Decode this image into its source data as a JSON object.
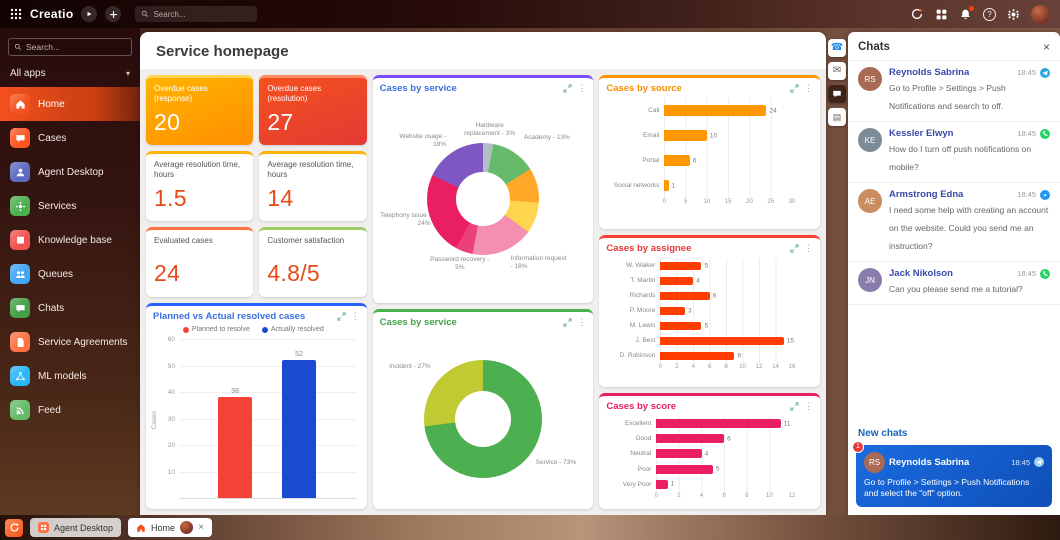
{
  "topbar": {
    "logo": "Creatio",
    "search_placeholder": "Search...",
    "right_icons": [
      "refresh-swirl",
      "apps-grid",
      "notifications-bell",
      "help",
      "settings-gear",
      "user-avatar"
    ]
  },
  "sidebar": {
    "search_placeholder": "Search...",
    "workspace_selector": "All apps",
    "items": [
      {
        "label": "Home",
        "color": "#f4511e",
        "active": true
      },
      {
        "label": "Cases",
        "color": "#ff5722"
      },
      {
        "label": "Agent Desktop",
        "color": "#5c6bc0"
      },
      {
        "label": "Services",
        "color": "#4caf50"
      },
      {
        "label": "Knowledge base",
        "color": "#ef5350"
      },
      {
        "label": "Queues",
        "color": "#42a5f5"
      },
      {
        "label": "Chats",
        "color": "#43a047"
      },
      {
        "label": "Service Agreements",
        "color": "#ff7043"
      },
      {
        "label": "ML models",
        "color": "#29b6f6"
      },
      {
        "label": "Feed",
        "color": "#66bb6a"
      }
    ]
  },
  "main": {
    "title": "Service homepage",
    "kpis": [
      {
        "label": "Overdue cases (response)",
        "value": "20",
        "accent": "#ffd54f",
        "grad": {
          "from": "#ffb300",
          "to": "#ff8f00"
        }
      },
      {
        "label": "Overdue cases (resolution)",
        "value": "27",
        "accent": "#ff8a65",
        "grad": {
          "from": "#f4511e",
          "to": "#e53935"
        }
      },
      {
        "label": "Average resolution time, hours",
        "value": "1.5",
        "accent": "#ffb300"
      },
      {
        "label": "Average resolution time, hours",
        "value": "14",
        "accent": "#ffb300"
      },
      {
        "label": "Evaluated cases",
        "value": "24",
        "accent": "#ff7043"
      },
      {
        "label": "Customer satisfaction",
        "value": "4.8/5",
        "accent": "#9ccc65"
      }
    ]
  },
  "charts": {
    "cases_by_service": {
      "type": "pie",
      "title": "Cases by service",
      "title_color": "#3b6fe0",
      "accent": "#7c4dff",
      "segments": [
        {
          "label": "Hardware replacement",
          "pct": 3,
          "color": "#b0bec5"
        },
        {
          "label": "Academy",
          "pct": 13,
          "color": "#66bb6a"
        },
        {
          "label": "",
          "pct": 10,
          "color": "#ffa726"
        },
        {
          "label": "",
          "pct": 9,
          "color": "#ffd54f"
        },
        {
          "label": "Information request",
          "pct": 18,
          "color": "#f48fb1"
        },
        {
          "label": "Password recovery",
          "pct": 5,
          "color": "#ec407a"
        },
        {
          "label": "Telephony issue",
          "pct": 24,
          "color": "#e91e63"
        },
        {
          "label": "Website usage",
          "pct": 18,
          "color": "#7e57c2"
        }
      ]
    },
    "cases_by_source": {
      "type": "bar-horizontal",
      "title": "Cases by source",
      "title_color": "#fb8c00",
      "accent": "#ff9800",
      "color": "#ff9800",
      "categories": [
        "Call",
        "Email",
        "Portal",
        "Social networks"
      ],
      "values": [
        24,
        10,
        6,
        1
      ],
      "xmax": 30,
      "xticks": [
        0,
        5,
        10,
        15,
        20,
        25,
        30
      ]
    },
    "cases_by_assignee": {
      "type": "bar-horizontal",
      "title": "Cases by assignee",
      "title_color": "#e53935",
      "accent": "#f44336",
      "color": "#ff3d00",
      "categories": [
        "W. Walker",
        "T. Martin",
        "Richards",
        "P. Moore",
        "M. Lewis",
        "J. Best",
        "D. Robinson"
      ],
      "values": [
        5,
        4,
        6,
        3,
        5,
        15,
        9
      ],
      "xmax": 16,
      "xticks": [
        0,
        2,
        4,
        6,
        8,
        10,
        12,
        14,
        16
      ]
    },
    "planned_vs_actual": {
      "type": "bar",
      "title": "Planned vs Actual resolved cases",
      "title_color": "#3b6fe0",
      "accent": "#2962ff",
      "ylabel": "Cases",
      "ylim": [
        0,
        60
      ],
      "yticks": [
        10,
        20,
        30,
        40,
        50,
        60
      ],
      "series": [
        {
          "name": "Planned to resolve",
          "color": "#f44336",
          "value": 38
        },
        {
          "name": "Actually resolved",
          "color": "#1a49d2",
          "value": 52
        }
      ]
    },
    "cases_by_service_type": {
      "type": "pie",
      "title": "Cases by service",
      "title_color": "#43a047",
      "accent": "#4caf50",
      "segments": [
        {
          "label": "Service",
          "pct": 73,
          "color": "#4caf50"
        },
        {
          "label": "Incident",
          "pct": 27,
          "color": "#c0ca33"
        }
      ]
    },
    "cases_by_score": {
      "type": "bar-horizontal",
      "title": "Cases by score",
      "title_color": "#e91e63",
      "accent": "#e91e63",
      "color": "#e91e63",
      "categories": [
        "Excellent",
        "Good",
        "Neutral",
        "Poor",
        "Very Poor"
      ],
      "values": [
        11,
        6,
        4,
        5,
        1
      ],
      "xmax": 12,
      "xticks": [
        0,
        2,
        4,
        6,
        8,
        10,
        12
      ]
    }
  },
  "comm_panel": {
    "icons": [
      "calls",
      "emails",
      "chats",
      "feed"
    ]
  },
  "chat_panel": {
    "title": "Chats",
    "items": [
      {
        "name": "Reynolds Sabrina",
        "initials": "RS",
        "avatar_color": "#a96a55",
        "time": "18:45",
        "channel": "telegram",
        "message": "Go to Profile > Settings > Push Notifications and search to off."
      },
      {
        "name": "Kessler Elwyn",
        "initials": "KE",
        "avatar_color": "#7d8a97",
        "time": "18:45",
        "channel": "whatsapp",
        "message": "How do I turn off push notifications on mobile?"
      },
      {
        "name": "Armstrong Edna",
        "initials": "AE",
        "avatar_color": "#c98d5f",
        "time": "18:45",
        "channel": "messenger",
        "message": "I need some help with creating an account on the website. Could you send me an instruction?"
      },
      {
        "name": "Jack Nikolson",
        "initials": "JN",
        "avatar_color": "#8a7dab",
        "time": "18:45",
        "channel": "whatsapp",
        "message": "Can you please send me a tutorial?"
      }
    ],
    "new_chats_title": "New chats",
    "new_chat": {
      "badge": "1",
      "name": "Reynolds Sabrina",
      "initials": "RS",
      "avatar_color": "#a96a55",
      "time": "18:45",
      "channel": "telegram",
      "message": "Go to Profile > Settings > Push Notifications and select the \"off\" option."
    }
  },
  "taskbar": {
    "tabs": [
      {
        "label": "Agent Desktop"
      },
      {
        "label": "Home",
        "active": true
      }
    ]
  }
}
